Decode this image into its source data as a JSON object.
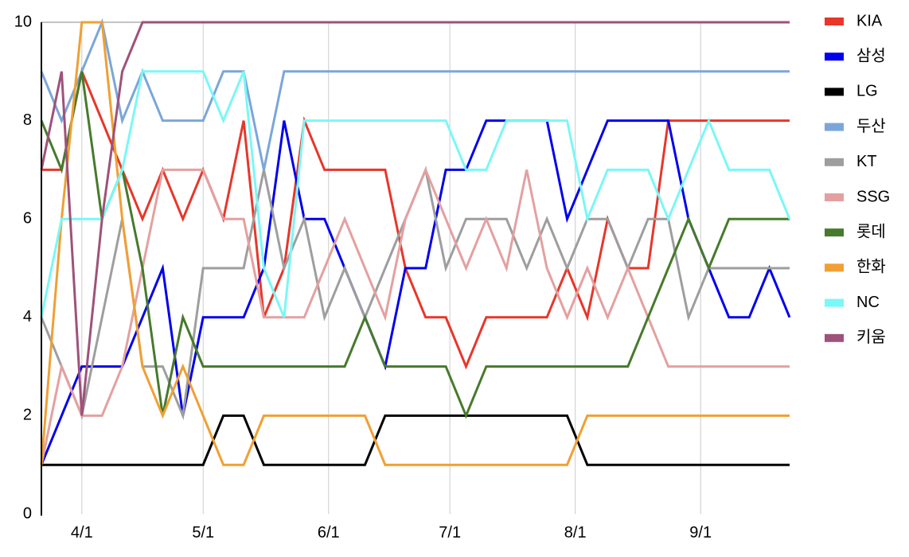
{
  "chart_data": {
    "type": "line",
    "x": [
      "3/22",
      "3/27",
      "4/1",
      "4/6",
      "4/11",
      "4/16",
      "4/21",
      "4/26",
      "5/1",
      "5/6",
      "5/11",
      "5/16",
      "5/21",
      "5/26",
      "5/31",
      "6/5",
      "6/10",
      "6/15",
      "6/20",
      "6/25",
      "6/30",
      "7/5",
      "7/10",
      "7/15",
      "7/20",
      "7/25",
      "7/30",
      "8/4",
      "8/9",
      "8/14",
      "8/19",
      "8/24",
      "8/29",
      "9/3",
      "9/8",
      "9/13",
      "9/18",
      "9/23"
    ],
    "xlim": [
      "3/22",
      "9/23"
    ],
    "xticks": [
      "4/1",
      "5/1",
      "6/1",
      "7/1",
      "8/1",
      "9/1"
    ],
    "ylim": [
      0,
      10
    ],
    "yticks": [
      0,
      2,
      4,
      6,
      8,
      10
    ],
    "grid": "x",
    "legend": "right",
    "series": [
      {
        "name": "KIA",
        "color": "#e8362a",
        "values": [
          7,
          7,
          9,
          8,
          7,
          6,
          7,
          6,
          7,
          6,
          8,
          4,
          5,
          8,
          7,
          7,
          7,
          7,
          5,
          4,
          4,
          3,
          4,
          4,
          4,
          4,
          5,
          4,
          6,
          5,
          5,
          8,
          8,
          8,
          8,
          8,
          8,
          8
        ]
      },
      {
        "name": "삼성",
        "color": "#0000ee",
        "values": [
          1,
          2,
          3,
          3,
          3,
          4,
          5,
          2,
          4,
          4,
          4,
          5,
          8,
          6,
          6,
          5,
          4,
          3,
          5,
          5,
          7,
          7,
          8,
          8,
          8,
          8,
          6,
          7,
          8,
          8,
          8,
          8,
          6,
          5,
          4,
          4,
          5,
          4
        ]
      },
      {
        "name": "LG",
        "color": "#000000",
        "values": [
          1,
          1,
          1,
          1,
          1,
          1,
          1,
          1,
          1,
          2,
          2,
          1,
          1,
          1,
          1,
          1,
          1,
          2,
          2,
          2,
          2,
          2,
          2,
          2,
          2,
          2,
          2,
          1,
          1,
          1,
          1,
          1,
          1,
          1,
          1,
          1,
          1,
          1
        ]
      },
      {
        "name": "두산",
        "color": "#7ba6d9",
        "values": [
          9,
          8,
          9,
          10,
          8,
          9,
          8,
          8,
          8,
          9,
          9,
          7,
          9,
          9,
          9,
          9,
          9,
          9,
          9,
          9,
          9,
          9,
          9,
          9,
          9,
          9,
          9,
          9,
          9,
          9,
          9,
          9,
          9,
          9,
          9,
          9,
          9,
          9
        ]
      },
      {
        "name": "KT",
        "color": "#9e9e9e",
        "values": [
          4,
          3,
          2,
          4,
          6,
          3,
          3,
          2,
          5,
          5,
          5,
          7,
          5,
          6,
          4,
          5,
          4,
          5,
          6,
          7,
          5,
          6,
          6,
          6,
          5,
          6,
          5,
          6,
          6,
          5,
          6,
          6,
          4,
          5,
          5,
          5,
          5,
          5
        ]
      },
      {
        "name": "SSG",
        "color": "#e4a0a0",
        "values": [
          1,
          3,
          2,
          2,
          3,
          5,
          7,
          7,
          7,
          6,
          6,
          4,
          4,
          4,
          5,
          6,
          5,
          4,
          6,
          7,
          6,
          5,
          6,
          5,
          7,
          5,
          4,
          5,
          4,
          5,
          4,
          3,
          3,
          3,
          3,
          3,
          3,
          3
        ]
      },
      {
        "name": "롯데",
        "color": "#477a2c",
        "values": [
          8,
          7,
          9,
          6,
          7,
          5,
          2,
          4,
          3,
          3,
          3,
          3,
          3,
          3,
          3,
          3,
          4,
          3,
          3,
          3,
          3,
          2,
          3,
          3,
          3,
          3,
          3,
          3,
          3,
          3,
          4,
          5,
          6,
          5,
          6,
          6,
          6,
          6
        ]
      },
      {
        "name": "한화",
        "color": "#f0a033",
        "values": [
          1,
          6,
          10,
          10,
          6,
          3,
          2,
          3,
          2,
          1,
          1,
          2,
          2,
          2,
          2,
          2,
          2,
          1,
          1,
          1,
          1,
          1,
          1,
          1,
          1,
          1,
          1,
          2,
          2,
          2,
          2,
          2,
          2,
          2,
          2,
          2,
          2,
          2
        ]
      },
      {
        "name": "NC",
        "color": "#7af7f7",
        "values": [
          4,
          6,
          6,
          6,
          7,
          9,
          9,
          9,
          9,
          8,
          9,
          5,
          4,
          8,
          8,
          8,
          8,
          8,
          8,
          8,
          8,
          7,
          7,
          8,
          8,
          8,
          8,
          6,
          7,
          7,
          7,
          6,
          7,
          8,
          7,
          7,
          7,
          6
        ]
      },
      {
        "name": "키움",
        "color": "#9e527a",
        "values": [
          7,
          9,
          2,
          6,
          9,
          10,
          10,
          10,
          10,
          10,
          10,
          10,
          10,
          10,
          10,
          10,
          10,
          10,
          10,
          10,
          10,
          10,
          10,
          10,
          10,
          10,
          10,
          10,
          10,
          10,
          10,
          10,
          10,
          10,
          10,
          10,
          10,
          10
        ]
      }
    ]
  }
}
